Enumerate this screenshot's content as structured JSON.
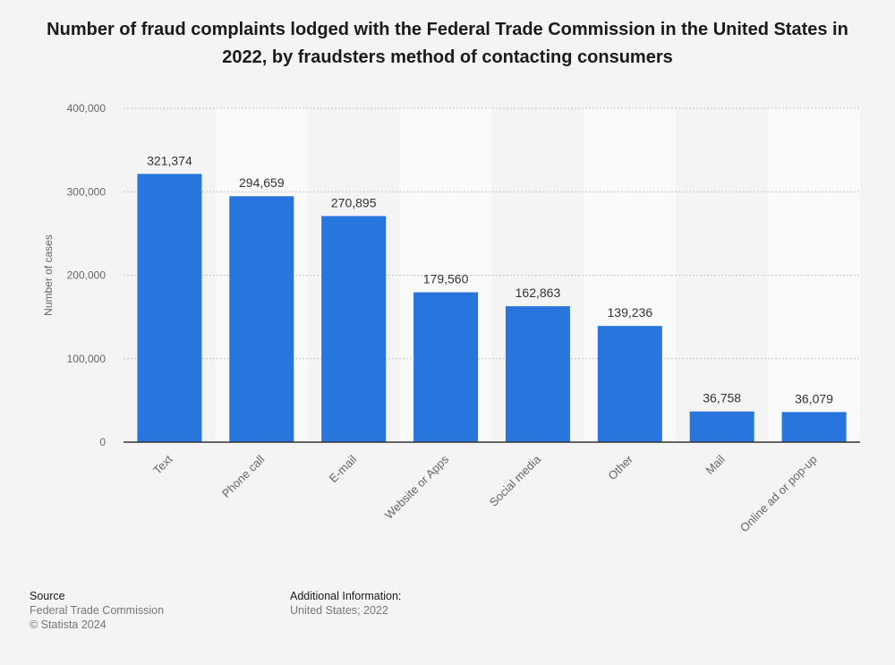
{
  "chart_data": {
    "type": "bar",
    "title": "Number of fraud complaints lodged with the Federal Trade Commission in the United States in 2022, by fraudsters method of contacting consumers",
    "xlabel": "",
    "ylabel": "Number of cases",
    "ylim": [
      0,
      400000
    ],
    "yticks": [
      0,
      100000,
      200000,
      300000,
      400000
    ],
    "ytick_labels": [
      "0",
      "100,000",
      "200,000",
      "300,000",
      "400,000"
    ],
    "grid": true,
    "bar_color": "#2876dd",
    "categories": [
      "Text",
      "Phone call",
      "E-mail",
      "Website or Apps",
      "Social media",
      "Other",
      "Mail",
      "Online ad or pop-up"
    ],
    "values": [
      321374,
      294659,
      270895,
      179560,
      162863,
      139236,
      36758,
      36079
    ],
    "value_labels": [
      "321,374",
      "294,659",
      "270,895",
      "179,560",
      "162,863",
      "139,236",
      "36,758",
      "36,079"
    ]
  },
  "footer": {
    "source_heading": "Source",
    "source_lines": [
      "Federal Trade Commission",
      "© Statista 2024"
    ],
    "info_heading": "Additional Information:",
    "info_lines": [
      "United States; 2022"
    ]
  }
}
